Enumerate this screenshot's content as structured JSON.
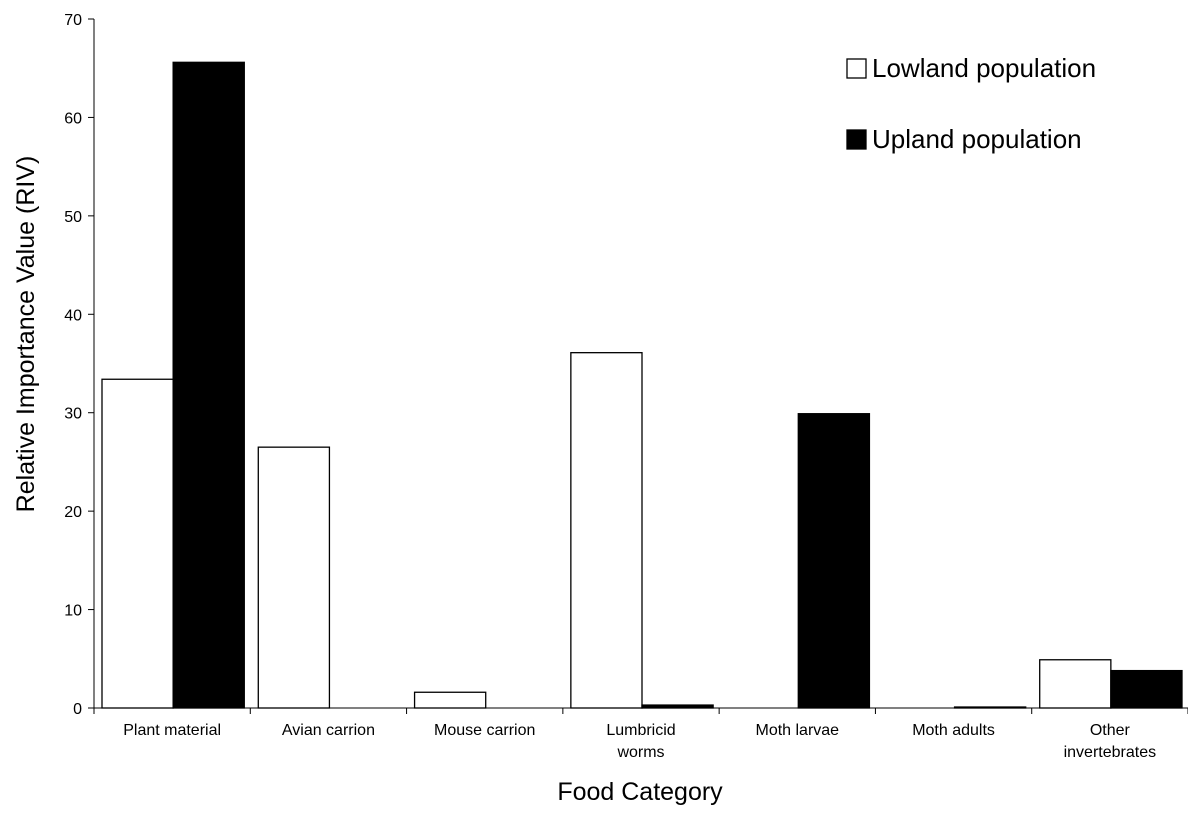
{
  "chart_data": {
    "type": "bar",
    "x_label": "Food Category",
    "y_label": "Relative Importance Value (RIV)",
    "categories": [
      "Plant material",
      "Avian carrion",
      "Mouse carrion",
      "Lumbricid\nworms",
      "Moth larvae",
      "Moth adults",
      "Other\ninvertebrates"
    ],
    "series": [
      {
        "name": "Lowland population",
        "color": "#ffffff",
        "values": [
          33.4,
          26.5,
          1.6,
          36.1,
          0,
          0,
          4.9
        ]
      },
      {
        "name": "Upland population",
        "color": "#000000",
        "values": [
          65.6,
          0,
          0,
          0.3,
          29.9,
          0.1,
          3.8
        ]
      }
    ],
    "ylim": [
      0,
      70
    ],
    "yticks": [
      0,
      10,
      20,
      30,
      40,
      50,
      60,
      70
    ],
    "legend": "upper right"
  }
}
